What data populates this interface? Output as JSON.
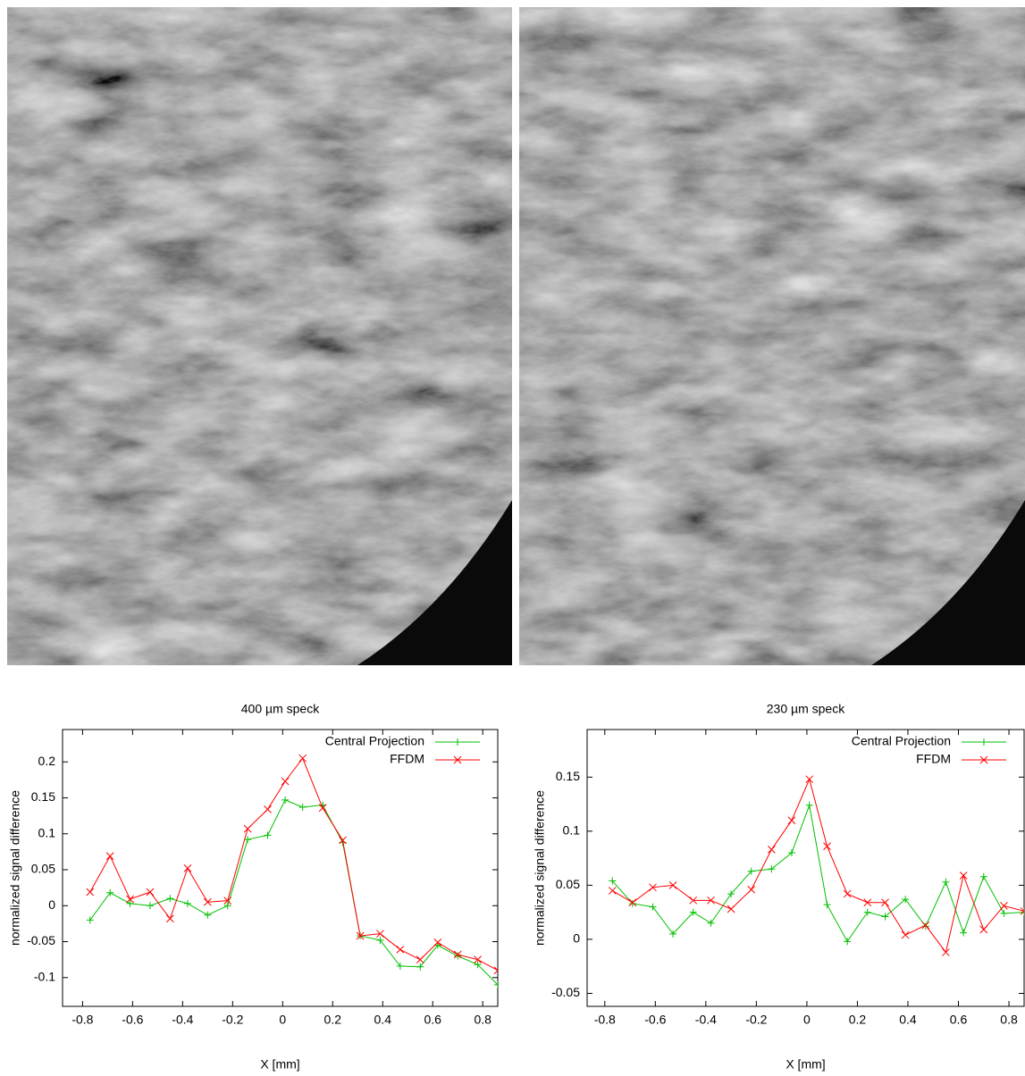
{
  "chart_data": [
    {
      "type": "line",
      "title": "400 µm speck",
      "x_label": "X [mm]",
      "y_label": "normalized signal difference",
      "x": [
        -0.77,
        -0.69,
        -0.61,
        -0.53,
        -0.45,
        -0.38,
        -0.3,
        -0.22,
        -0.14,
        -0.06,
        0.01,
        0.08,
        0.16,
        0.24,
        0.31,
        0.39,
        0.47,
        0.55,
        0.62,
        0.7,
        0.78,
        0.86
      ],
      "series": [
        {
          "name": "Central Projection",
          "color": "#00c000",
          "marker": "plus",
          "values": [
            -0.02,
            0.018,
            0.003,
            0.0,
            0.01,
            0.003,
            -0.013,
            0.0,
            0.092,
            0.098,
            0.147,
            0.137,
            0.14,
            0.088,
            -0.042,
            -0.048,
            -0.084,
            -0.085,
            -0.055,
            -0.07,
            -0.082,
            -0.11
          ]
        },
        {
          "name": "FFDM",
          "color": "#ff0000",
          "marker": "cross",
          "values": [
            0.019,
            0.069,
            0.009,
            0.019,
            -0.018,
            0.052,
            0.005,
            0.007,
            0.107,
            0.134,
            0.173,
            0.205,
            0.136,
            0.091,
            -0.042,
            -0.039,
            -0.061,
            -0.075,
            -0.051,
            -0.068,
            -0.075,
            -0.09
          ]
        }
      ],
      "xlim": [
        -0.88,
        0.86
      ],
      "xticks": [
        -0.8,
        -0.6,
        -0.4,
        -0.2,
        0,
        0.2,
        0.4,
        0.6,
        0.8
      ],
      "ylim": [
        -0.14,
        0.245
      ],
      "yticks": [
        -0.1,
        -0.05,
        0,
        0.05,
        0.1,
        0.15,
        0.2
      ],
      "legend": "upper right"
    },
    {
      "type": "line",
      "title": "230 µm speck",
      "x_label": "X [mm]",
      "y_label": "normalized signal difference",
      "x": [
        -0.77,
        -0.69,
        -0.61,
        -0.53,
        -0.45,
        -0.38,
        -0.3,
        -0.22,
        -0.14,
        -0.06,
        0.01,
        0.08,
        0.16,
        0.24,
        0.31,
        0.39,
        0.47,
        0.55,
        0.62,
        0.7,
        0.78,
        0.86
      ],
      "series": [
        {
          "name": "Central Projection",
          "color": "#00c000",
          "marker": "plus",
          "values": [
            0.054,
            0.033,
            0.03,
            0.005,
            0.025,
            0.015,
            0.042,
            0.063,
            0.065,
            0.08,
            0.124,
            0.032,
            -0.002,
            0.025,
            0.021,
            0.037,
            0.012,
            0.053,
            0.006,
            0.058,
            0.024,
            0.025
          ]
        },
        {
          "name": "FFDM",
          "color": "#ff0000",
          "marker": "cross",
          "values": [
            0.045,
            0.034,
            0.048,
            0.05,
            0.036,
            0.036,
            0.028,
            0.046,
            0.083,
            0.11,
            0.148,
            0.086,
            0.042,
            0.034,
            0.034,
            0.004,
            0.013,
            -0.012,
            0.059,
            0.009,
            0.031,
            0.026
          ]
        }
      ],
      "xlim": [
        -0.87,
        0.86
      ],
      "xticks": [
        -0.8,
        -0.6,
        -0.4,
        -0.2,
        0,
        0.2,
        0.4,
        0.6,
        0.8
      ],
      "ylim": [
        -0.062,
        0.194
      ],
      "yticks": [
        -0.05,
        0,
        0.05,
        0.1,
        0.15
      ],
      "legend": "upper right"
    }
  ]
}
